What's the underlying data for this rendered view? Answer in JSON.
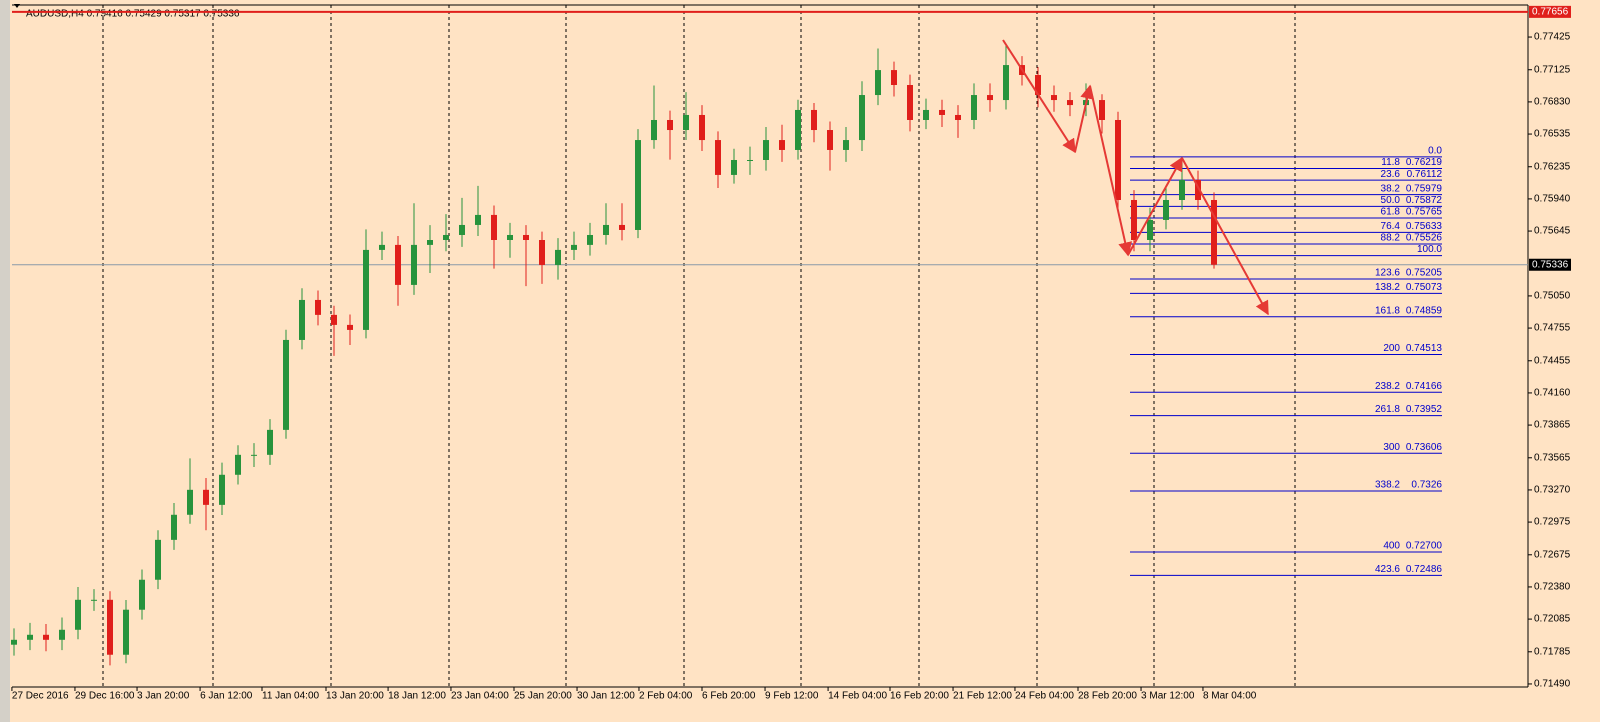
{
  "chart_data": {
    "type": "candlestick",
    "title": "AUDUSD,H4  0.75416 0.75429 0.75317 0.75336",
    "up_color": "#27933c",
    "down_color": "#e01f1b",
    "open": [
      0.7185,
      0.71895,
      0.71941,
      0.71895,
      0.71987,
      0.72262,
      0.72262,
      0.71758,
      0.72171,
      0.72446,
      0.72812,
      0.73042,
      0.73271,
      0.73133,
      0.73409,
      0.73592,
      0.73592,
      0.73821,
      0.74646,
      0.75013,
      0.74876,
      0.74784,
      0.74738,
      0.75472,
      0.75518,
      0.75151,
      0.75518,
      0.75563,
      0.75609,
      0.75701,
      0.75793,
      0.75563,
      0.75609,
      0.75563,
      0.75334,
      0.75472,
      0.75518,
      0.75609,
      0.75701,
      0.75655,
      0.7648,
      0.76664,
      0.76572,
      0.7671,
      0.7648,
      0.7616,
      0.76297,
      0.76297,
      0.7648,
      0.76389,
      0.76756,
      0.76572,
      0.76389,
      0.7648,
      0.76893,
      0.77122,
      0.76985,
      0.76664,
      0.76756,
      0.7671,
      0.76664,
      0.76893,
      0.76847,
      0.77168,
      0.77077,
      0.76893,
      0.76847,
      0.76801,
      0.76847,
      0.76664,
      0.7593,
      0.75563,
      0.75747,
      0.7593,
      0.76114,
      0.7593
    ],
    "high": [
      0.72,
      0.7205,
      0.7204,
      0.721,
      0.7238,
      0.7236,
      0.7234,
      0.7226,
      0.7254,
      0.729,
      0.7315,
      0.7356,
      0.7338,
      0.7352,
      0.7368,
      0.737,
      0.7392,
      0.7474,
      0.7512,
      0.751,
      0.7496,
      0.7488,
      0.7566,
      0.7564,
      0.756,
      0.759,
      0.757,
      0.758,
      0.7595,
      0.7606,
      0.7588,
      0.7572,
      0.757,
      0.7564,
      0.7558,
      0.7564,
      0.7572,
      0.759,
      0.759,
      0.7658,
      0.7698,
      0.7675,
      0.7692,
      0.768,
      0.7656,
      0.764,
      0.7642,
      0.766,
      0.7662,
      0.7685,
      0.7682,
      0.7665,
      0.766,
      0.7702,
      0.7732,
      0.772,
      0.7708,
      0.7686,
      0.7685,
      0.768,
      0.77,
      0.77,
      0.7736,
      0.7725,
      0.7715,
      0.7698,
      0.7692,
      0.77,
      0.769,
      0.7674,
      0.7602,
      0.7586,
      0.7606,
      0.7632,
      0.762,
      0.76
    ],
    "low": [
      0.7175,
      0.718,
      0.7179,
      0.718,
      0.719,
      0.7216,
      0.7166,
      0.7168,
      0.7208,
      0.7236,
      0.7272,
      0.7296,
      0.729,
      0.7304,
      0.7332,
      0.7348,
      0.735,
      0.7374,
      0.7456,
      0.7478,
      0.745,
      0.746,
      0.7466,
      0.7538,
      0.7496,
      0.7506,
      0.7526,
      0.7546,
      0.755,
      0.756,
      0.753,
      0.754,
      0.7514,
      0.7516,
      0.752,
      0.7538,
      0.7542,
      0.7552,
      0.7556,
      0.7558,
      0.764,
      0.763,
      0.7648,
      0.7638,
      0.7604,
      0.7608,
      0.7616,
      0.762,
      0.7628,
      0.763,
      0.7646,
      0.762,
      0.7628,
      0.7638,
      0.768,
      0.7688,
      0.7656,
      0.7658,
      0.766,
      0.765,
      0.7658,
      0.7674,
      0.7676,
      0.7698,
      0.7678,
      0.7674,
      0.767,
      0.767,
      0.7654,
      0.7584,
      0.7546,
      0.7546,
      0.7566,
      0.7584,
      0.7584,
      0.753
    ],
    "close": [
      0.71895,
      0.71941,
      0.71895,
      0.71987,
      0.72262,
      0.72262,
      0.71758,
      0.72171,
      0.72446,
      0.72812,
      0.73042,
      0.73271,
      0.73133,
      0.73409,
      0.73592,
      0.73592,
      0.73821,
      0.74646,
      0.75013,
      0.74876,
      0.74784,
      0.74738,
      0.75472,
      0.75518,
      0.75151,
      0.75518,
      0.75563,
      0.75609,
      0.75701,
      0.75793,
      0.75563,
      0.75609,
      0.75563,
      0.75334,
      0.75472,
      0.75518,
      0.75609,
      0.75701,
      0.75655,
      0.7648,
      0.76664,
      0.76572,
      0.7671,
      0.7648,
      0.7616,
      0.76297,
      0.76297,
      0.7648,
      0.76389,
      0.76756,
      0.76572,
      0.76389,
      0.7648,
      0.76893,
      0.77122,
      0.76985,
      0.76664,
      0.76756,
      0.7671,
      0.76664,
      0.76893,
      0.76847,
      0.77168,
      0.77077,
      0.76893,
      0.76847,
      0.76801,
      0.76847,
      0.76664,
      0.7593,
      0.75563,
      0.75747,
      0.7593,
      0.76114,
      0.7593,
      0.75336
    ],
    "xticks": [
      {
        "value": -0.13,
        "label": "27 Dec 2016"
      },
      {
        "value": 3.81,
        "label": "29 Dec 16:00"
      },
      {
        "value": 7.69,
        "label": "3 Jan 20:00"
      },
      {
        "value": 11.63,
        "label": "6 Jan 12:00"
      },
      {
        "value": 15.5,
        "label": "11 Jan 04:00"
      },
      {
        "value": 19.5,
        "label": "13 Jan 20:00"
      },
      {
        "value": 23.38,
        "label": "18 Jan 12:00"
      },
      {
        "value": 27.31,
        "label": "23 Jan 04:00"
      },
      {
        "value": 31.25,
        "label": "25 Jan 20:00"
      },
      {
        "value": 35.19,
        "label": "30 Jan 12:00"
      },
      {
        "value": 39.06,
        "label": "2 Feb 04:00"
      },
      {
        "value": 43,
        "label": "6 Feb 20:00"
      },
      {
        "value": 46.94,
        "label": "9 Feb 12:00"
      },
      {
        "value": 50.88,
        "label": "14 Feb 04:00"
      },
      {
        "value": 54.75,
        "label": "16 Feb 20:00"
      },
      {
        "value": 58.69,
        "label": "21 Feb 12:00"
      },
      {
        "value": 62.56,
        "label": "24 Feb 04:00"
      },
      {
        "value": 66.5,
        "label": "28 Feb 20:00"
      },
      {
        "value": 70.44,
        "label": "3 Mar 12:00"
      },
      {
        "value": 74.31,
        "label": "8 Mar 04:00"
      }
    ],
    "ylim": [
      0.71462,
      0.77719
    ],
    "yticks": [
      0.77425,
      0.77125,
      {
        "value": 0.7683,
        "label": "0.76830"
      },
      0.76535,
      0.76235,
      {
        "value": 0.7594,
        "label": "0.75940"
      },
      0.75645,
      {
        "value": 0.7505,
        "label": "0.75050"
      },
      0.74755,
      0.74455,
      {
        "value": 0.7416,
        "label": "0.74160"
      },
      0.73865,
      0.73565,
      {
        "value": 0.7327,
        "label": "0.73270"
      },
      0.72975,
      0.72675,
      {
        "value": 0.7238,
        "label": "0.72380"
      },
      0.72085,
      0.71785,
      {
        "value": 0.7149,
        "label": "0.71490"
      }
    ],
    "last_price": 0.75336,
    "top_price": 0.77656,
    "fibonacci": {
      "color": "#0000cc",
      "levels": [
        {
          "level": {
            "value": 0,
            "label": "0.0"
          },
          "line_price": 0.76326
        },
        {
          "level": 11.8,
          "price": 0.76219
        },
        {
          "level": 23.6,
          "price": 0.76112
        },
        {
          "level": 38.2,
          "price": 0.75979
        },
        {
          "level": {
            "value": 50,
            "label": "50.0"
          },
          "price": 0.75872
        },
        {
          "level": 61.8,
          "price": 0.75765
        },
        {
          "level": 76.4,
          "price": 0.75633
        },
        {
          "level": 88.2,
          "price": 0.75526
        },
        {
          "level": {
            "value": 100,
            "label": "100.0"
          },
          "line_price": 0.7542
        },
        {
          "level": 123.6,
          "price": 0.75205
        },
        {
          "level": 138.2,
          "price": 0.75073
        },
        {
          "level": 161.8,
          "price": 0.74859
        },
        {
          "level": 200,
          "price": 0.74513
        },
        {
          "level": 238.2,
          "price": 0.74166
        },
        {
          "level": 261.8,
          "price": 0.73952
        },
        {
          "level": 300,
          "price": 0.73606
        },
        {
          "level": 338.2,
          "price": 0.7326
        },
        {
          "level": 400,
          "price": {
            "value": 0.727,
            "label": "0.72700"
          }
        },
        {
          "level": 423.6,
          "price": 0.72486
        }
      ]
    }
  }
}
